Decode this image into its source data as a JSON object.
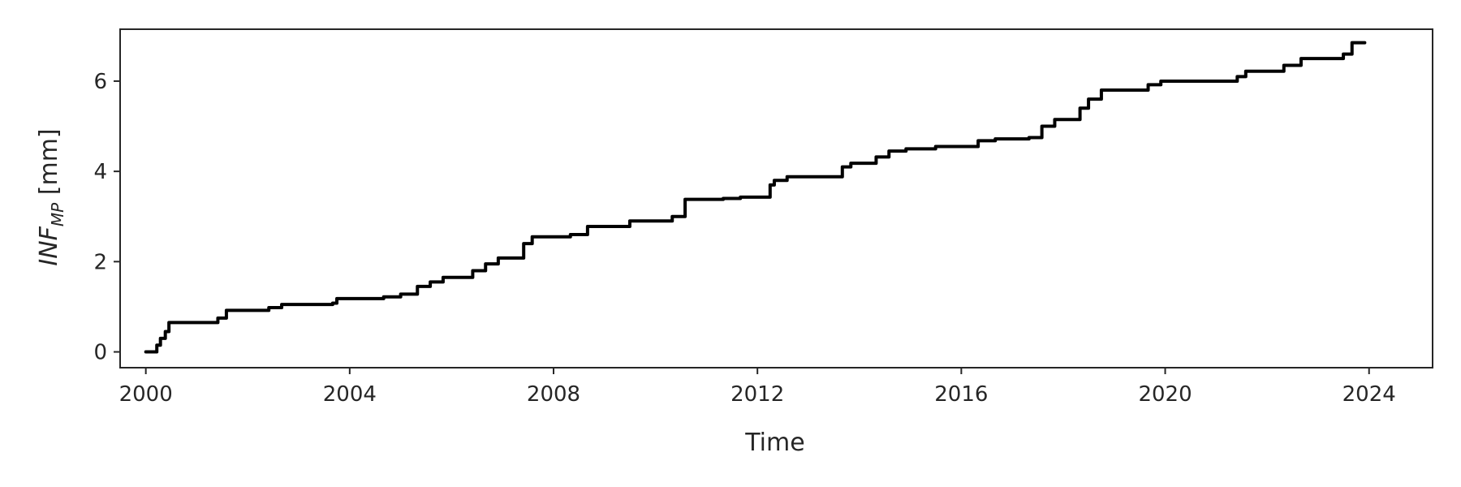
{
  "chart_data": {
    "type": "line",
    "title": "",
    "xlabel": "Time",
    "ylabel": {
      "main": "INF",
      "subscript": "MP",
      "unit": " [mm]"
    },
    "xlim": [
      "1999-07-01",
      "2025-04-01"
    ],
    "ylim": [
      -0.35,
      7.15
    ],
    "x_ticks": [
      "2000",
      "2004",
      "2008",
      "2012",
      "2016",
      "2020",
      "2024"
    ],
    "y_ticks": [
      "0",
      "2",
      "4",
      "6"
    ],
    "grid": false,
    "legend": "none",
    "step": true,
    "line_color": "#000000",
    "series": [
      {
        "x": [
          "2000-01-01",
          "2000-03-20",
          "2000-04-15",
          "2000-05-20",
          "2000-06-15",
          "2001-06-01",
          "2001-08-01",
          "2002-06-01",
          "2002-09-01",
          "2003-09-01",
          "2003-10-01",
          "2004-09-01",
          "2005-01-01",
          "2005-05-01",
          "2005-08-01",
          "2005-11-01",
          "2006-06-01",
          "2006-09-01",
          "2006-12-01",
          "2007-06-01",
          "2007-08-01",
          "2008-05-01",
          "2008-09-01",
          "2009-07-01",
          "2010-05-01",
          "2010-08-01",
          "2011-05-01",
          "2011-09-01",
          "2012-04-01",
          "2012-05-01",
          "2012-08-01",
          "2013-09-01",
          "2013-11-01",
          "2014-05-01",
          "2014-08-01",
          "2014-12-01",
          "2015-07-01",
          "2016-05-01",
          "2016-09-01",
          "2017-05-01",
          "2017-08-01",
          "2017-11-01",
          "2018-05-01",
          "2018-07-01",
          "2018-10-01",
          "2019-09-01",
          "2019-12-01",
          "2021-06-01",
          "2021-08-01",
          "2022-05-01",
          "2022-09-01",
          "2023-07-01",
          "2023-09-01",
          "2023-12-01"
        ],
        "y": [
          0.0,
          0.15,
          0.3,
          0.45,
          0.65,
          0.75,
          0.92,
          0.98,
          1.05,
          1.08,
          1.18,
          1.22,
          1.28,
          1.45,
          1.55,
          1.65,
          1.8,
          1.95,
          2.08,
          2.4,
          2.55,
          2.6,
          2.78,
          2.9,
          3.0,
          3.38,
          3.4,
          3.43,
          3.7,
          3.8,
          3.88,
          4.1,
          4.18,
          4.32,
          4.45,
          4.5,
          4.55,
          4.68,
          4.72,
          4.75,
          5.0,
          5.15,
          5.4,
          5.6,
          5.8,
          5.92,
          6.0,
          6.1,
          6.22,
          6.35,
          6.5,
          6.6,
          6.85,
          6.85
        ]
      }
    ]
  }
}
